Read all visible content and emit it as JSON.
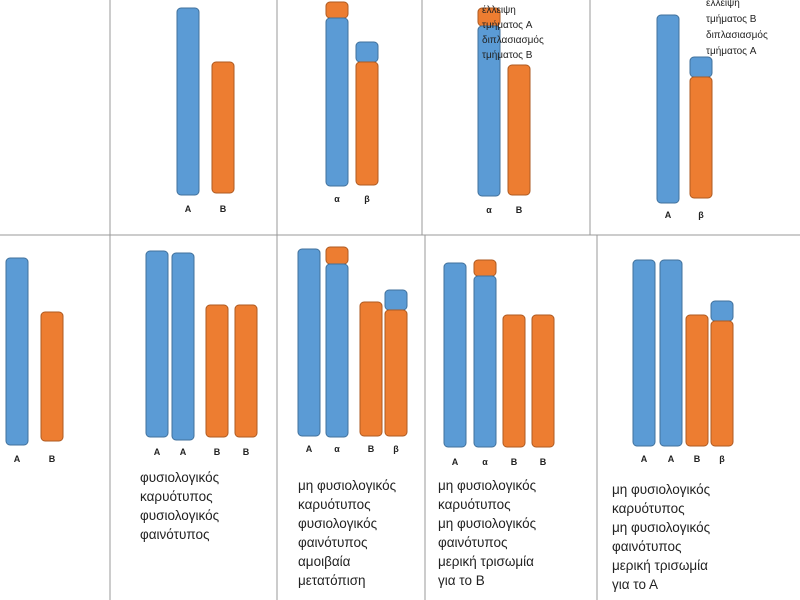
{
  "top_row": [
    {
      "labels": [
        "A",
        "B"
      ]
    },
    {
      "labels": [
        "α",
        "β"
      ]
    },
    {
      "labels": [
        "α",
        "B"
      ],
      "note": [
        "έλλειψη",
        "τμήματος A",
        "διπλασιασμός",
        "τμήματος B"
      ]
    },
    {
      "labels": [
        "A",
        "β"
      ],
      "note": [
        "έλλειψη",
        "τμήματος B",
        "διπλασιασμός",
        "τμήματος A"
      ]
    }
  ],
  "bottom_row": [
    {
      "labels": [
        "A",
        "B"
      ]
    },
    {
      "labels": [
        "A",
        "A",
        "B",
        "B"
      ],
      "caption": [
        "φυσιολογικός",
        "καρυότυπος",
        "φυσιολογικός",
        "φαινότυπος"
      ]
    },
    {
      "labels": [
        "A",
        "α",
        "B",
        "β"
      ],
      "caption": [
        "μη φυσιολογικός",
        "καρυότυπος",
        "φυσιολογικός",
        "φαινότυπος",
        "αμοιβαία",
        "μετατόπιση"
      ]
    },
    {
      "labels": [
        "A",
        "α",
        "B",
        "B"
      ],
      "caption": [
        "μη φυσιολογικός",
        "καρυότυπος",
        "μη φυσιολογικός",
        "φαινότυπος",
        "μερική τρισωμία",
        "για το Β"
      ]
    },
    {
      "labels": [
        "A",
        "A",
        "B",
        "β"
      ],
      "caption": [
        "μη φυσιολογικός",
        "καρυότυπος",
        "μη φυσιολογικός",
        "φαινότυπος",
        "μερική τρισωμία",
        "για το Α"
      ]
    }
  ]
}
